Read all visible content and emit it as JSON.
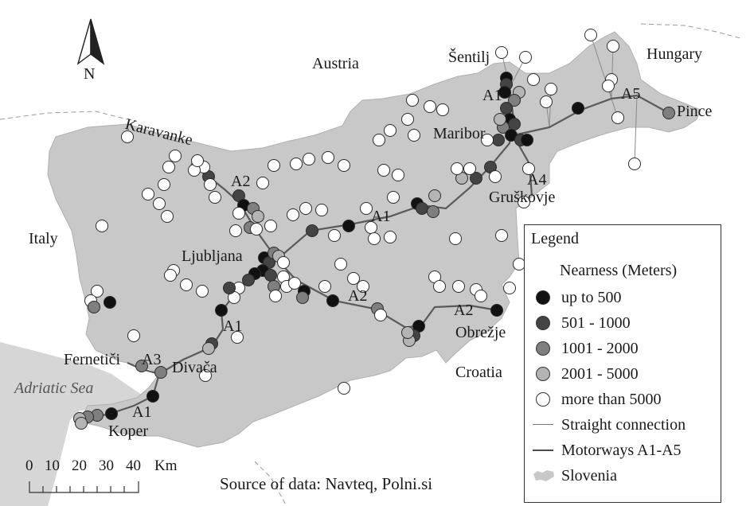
{
  "labels": {
    "austria": "Austria",
    "hungary": "Hungary",
    "italy": "Italy",
    "croatia": "Croatia",
    "adriatic": "Adriatic Sea",
    "karavanke": "Karavanke",
    "sentilj": "Šentilj",
    "maribor": "Maribor",
    "pince": "Pince",
    "gruskovje": "Gruškovje",
    "ljubljana": "Ljubljana",
    "obrezje": "Obrežje",
    "fernetici": "Fernetiči",
    "divaca": "Divača",
    "koper": "Koper",
    "a1_north": "A1",
    "a1_center": "A1",
    "a1_southwest": "A1",
    "a1_coast": "A1",
    "a2_northwest": "A2",
    "a2_center": "A2",
    "a2_east": "A2",
    "a3": "A3",
    "a4": "A4",
    "a5": "A5"
  },
  "north_arrow": {
    "label": "N"
  },
  "scale_bar": {
    "ticks": [
      "0",
      "10",
      "20",
      "30",
      "40"
    ],
    "unit": "Km"
  },
  "source": "Source of data: Navteq, Polni.si",
  "legend": {
    "title": "Legend",
    "subtitle": "Nearness (Meters)",
    "items": [
      {
        "label": "up to 500",
        "kind": "circle",
        "color": "#111111"
      },
      {
        "label": "501 - 1000",
        "kind": "circle",
        "color": "#444444"
      },
      {
        "label": "1001 - 2000",
        "kind": "circle",
        "color": "#7f7f7f"
      },
      {
        "label": "2001 - 5000",
        "kind": "circle",
        "color": "#b4b4b4"
      },
      {
        "label": "more than 5000",
        "kind": "circle",
        "color": "#ffffff"
      },
      {
        "label": "Straight connection",
        "kind": "line",
        "color": "#777777"
      },
      {
        "label": "Motorways A1-A5",
        "kind": "road",
        "color": "#4a4a4a"
      },
      {
        "label": "Slovenia",
        "kind": "area",
        "color": "#c8c8c8"
      }
    ]
  },
  "colors": {
    "country_fill": "#c8c8c8",
    "sea_fill": "#d6d6d6",
    "motorway": "#5a5a5a",
    "connection": "#8a8a8a"
  }
}
